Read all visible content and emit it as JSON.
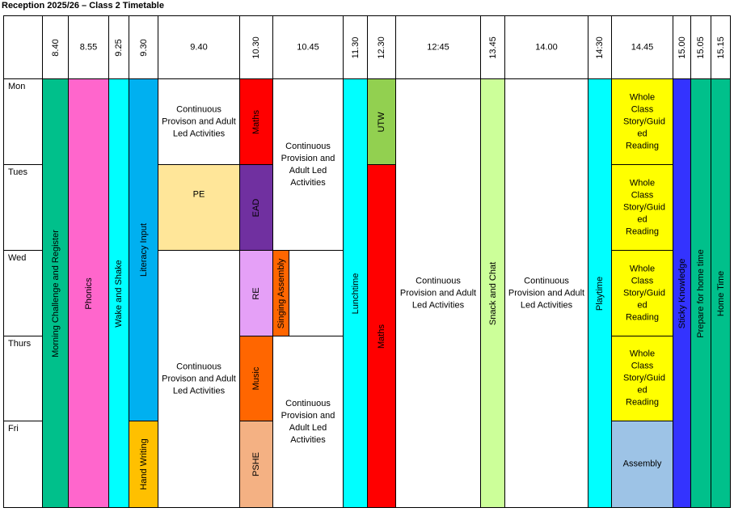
{
  "title": "Reception 2025/26 – Class 2 Timetable",
  "times": [
    "8.40",
    "8.55",
    "9.25",
    "9.30",
    "9.40",
    "10.30",
    "10.45",
    "11.30",
    "12.30",
    "12:45",
    "13.45",
    "14.00",
    "14:30",
    "14.45",
    "15.00",
    "15.05",
    "15.15"
  ],
  "days": [
    "Mon",
    "Tues",
    "Wed",
    "Thurs",
    "Fri"
  ],
  "activities": {
    "morning": "Morning Challenge and Register",
    "phonics": "Phonics",
    "wake": "Wake and Shake",
    "literacy": "Literacy Input",
    "handwriting": "Hand Writing",
    "cp_mon": "Continuous Provison and Adult Led Activities",
    "pe": "PE",
    "cp_wedfri": "Continuous Provison and Adult Led Activities",
    "maths_mon": "Maths",
    "ead": "EAD",
    "re": "RE",
    "music": "Music",
    "pshe": "PSHE",
    "cp_montue_1045": "Continuous Provision and Adult Led Activities",
    "singing": "Singing Assembly",
    "cp_thufri_1045": "Continuous Provision and Adult Led Activities",
    "lunch": "Lunchtime",
    "utw": "UTW",
    "maths_1230": "Maths",
    "cp_1245": "Continuous Provision and Adult Led Activities",
    "snack": "Snack and Chat",
    "cp_1400": "Continuous Provision and Adult Led Activities",
    "playtime": "Playtime",
    "story_mon": "Whole Class Story/Guid ed Reading",
    "story_tue": "Whole Class Story/Guid ed Reading",
    "story_wed": "Whole Class Story/Guid ed Reading",
    "story_thu": "Whole Class Story/Guid ed Reading",
    "assembly": "Assembly",
    "sticky": "Sticky Knowledge",
    "prepare": "Prepare for home time",
    "home": "Home Time"
  },
  "colors": {
    "teal": "#00c08b",
    "pink": "#ff66cc",
    "cyan": "#00ffff",
    "blue": "#00b0f0",
    "orange": "#ffc000",
    "red": "#ff0000",
    "lightorange": "#ffe699",
    "purple": "#7030a0",
    "lilac": "#e5a0f7",
    "darkorange": "#ff6600",
    "peach": "#f4b183",
    "green": "#92d050",
    "lightgreen": "#ccff99",
    "yellow": "#ffff00",
    "lightblue": "#9dc3e6",
    "indigo": "#3333ff"
  }
}
